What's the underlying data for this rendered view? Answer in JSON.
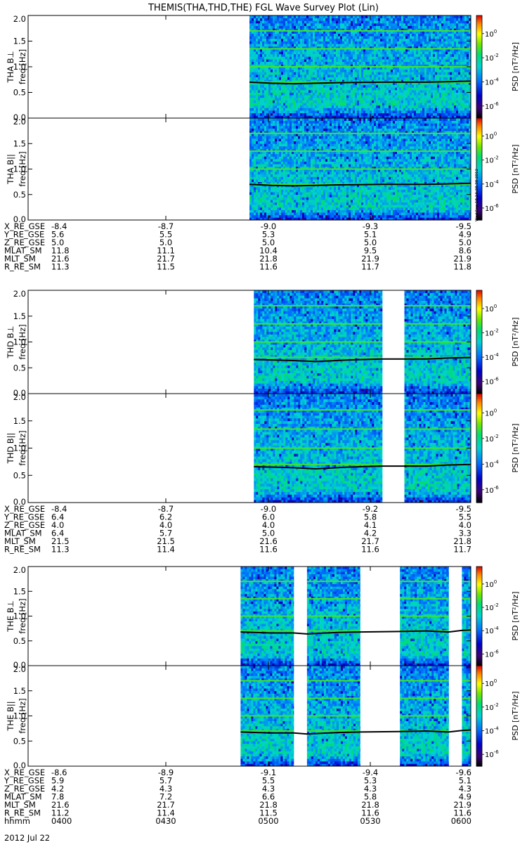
{
  "title": "THEMIS(THA,THD,THE) FGL Wave Survey Plot (Lin)",
  "date": "2012 Jul 22",
  "stamp": "Wed Sep 18 14:28:38 2012",
  "chart_data": {
    "type": "heatmap",
    "x_time_ticks": [
      "0400",
      "0430",
      "0500",
      "0530",
      "0600"
    ],
    "x_time_label": "hhmm",
    "freq_ticks": [
      "0.0",
      "0.5",
      "1.0",
      "1.5",
      "2.0"
    ],
    "freq_ylim": [
      0,
      2.0
    ],
    "colorbar": {
      "label": "PSD [nT²/Hz]",
      "ticks": [
        {
          "base": "10",
          "exp": "0",
          "log": 0
        },
        {
          "base": "10",
          "exp": "-2",
          "log": -2
        },
        {
          "base": "10",
          "exp": "-4",
          "log": -4
        },
        {
          "base": "10",
          "exp": "-6",
          "log": -6
        }
      ],
      "log_range": [
        -7,
        1.5
      ]
    },
    "probes": [
      {
        "id": "THA",
        "panels": [
          {
            "label": "THA B⊥",
            "ylabel": "freq [Hz]"
          },
          {
            "label": "THA B||",
            "ylabel": "freq [Hz]"
          }
        ],
        "data_intervals": [
          [
            0.5,
            1.0
          ]
        ],
        "gyro_line": [
          [
            0.5,
            0.7
          ],
          [
            0.55,
            0.68
          ],
          [
            0.6,
            0.67
          ],
          [
            0.65,
            0.68
          ],
          [
            0.7,
            0.69
          ],
          [
            0.8,
            0.7
          ],
          [
            0.9,
            0.7
          ],
          [
            0.95,
            0.71
          ],
          [
            1.0,
            0.72
          ]
        ],
        "ephem": {
          "rows": [
            {
              "name": "X_RE_GSE",
              "values": [
                "-8.4",
                "-8.7",
                "-9.0",
                "-9.3",
                "-9.5"
              ]
            },
            {
              "name": "Y_RE_GSE",
              "values": [
                "5.6",
                "5.5",
                "5.3",
                "5.1",
                "4.9"
              ]
            },
            {
              "name": "Z_RE_GSE",
              "values": [
                "5.0",
                "5.0",
                "5.0",
                "5.0",
                "5.0"
              ]
            },
            {
              "name": "MLAT_SM",
              "values": [
                "11.8",
                "11.1",
                "10.4",
                "9.5",
                "8.6"
              ]
            },
            {
              "name": "MLT_SM",
              "values": [
                "21.6",
                "21.7",
                "21.8",
                "21.9",
                "21.9"
              ]
            },
            {
              "name": "R_RE_SM",
              "values": [
                "11.3",
                "11.5",
                "11.6",
                "11.7",
                "11.8"
              ]
            }
          ]
        }
      },
      {
        "id": "THD",
        "panels": [
          {
            "label": "THD B⊥",
            "ylabel": "freq [Hz]"
          },
          {
            "label": "THD B||",
            "ylabel": "freq [Hz]"
          }
        ],
        "data_intervals": [
          [
            0.51,
            0.8
          ],
          [
            0.85,
            1.0
          ]
        ],
        "gyro_line": [
          [
            0.51,
            0.66
          ],
          [
            0.6,
            0.64
          ],
          [
            0.65,
            0.62
          ],
          [
            0.72,
            0.65
          ],
          [
            0.8,
            0.67
          ],
          [
            0.85,
            0.67
          ],
          [
            0.9,
            0.67
          ],
          [
            0.95,
            0.69
          ],
          [
            1.0,
            0.7
          ]
        ],
        "ephem": {
          "rows": [
            {
              "name": "X_RE_GSE",
              "values": [
                "-8.4",
                "-8.7",
                "-9.0",
                "-9.2",
                "-9.5"
              ]
            },
            {
              "name": "Y_RE_GSE",
              "values": [
                "6.4",
                "6.2",
                "6.0",
                "5.8",
                "5.5"
              ]
            },
            {
              "name": "Z_RE_GSE",
              "values": [
                "4.0",
                "4.0",
                "4.0",
                "4.1",
                "4.0"
              ]
            },
            {
              "name": "MLAT_SM",
              "values": [
                "6.4",
                "5.7",
                "5.0",
                "4.2",
                "3.3"
              ]
            },
            {
              "name": "MLT_SM",
              "values": [
                "21.5",
                "21.5",
                "21.6",
                "21.7",
                "21.8"
              ]
            },
            {
              "name": "R_RE_SM",
              "values": [
                "11.3",
                "11.4",
                "11.6",
                "11.6",
                "11.7"
              ]
            }
          ]
        }
      },
      {
        "id": "THE",
        "panels": [
          {
            "label": "THE B⊥",
            "ylabel": "freq [Hz]"
          },
          {
            "label": "THE B||",
            "ylabel": "freq [Hz]"
          }
        ],
        "data_intervals": [
          [
            0.48,
            0.6
          ],
          [
            0.63,
            0.75
          ],
          [
            0.84,
            0.95
          ],
          [
            0.98,
            1.0
          ]
        ],
        "gyro_line": [
          [
            0.48,
            0.68
          ],
          [
            0.55,
            0.66
          ],
          [
            0.6,
            0.66
          ],
          [
            0.63,
            0.64
          ],
          [
            0.7,
            0.67
          ],
          [
            0.75,
            0.68
          ],
          [
            0.84,
            0.69
          ],
          [
            0.9,
            0.7
          ],
          [
            0.95,
            0.68
          ],
          [
            0.98,
            0.71
          ],
          [
            1.0,
            0.72
          ]
        ],
        "ephem": {
          "rows": [
            {
              "name": "X_RE_GSE",
              "values": [
                "-8.6",
                "-8.9",
                "-9.1",
                "-9.4",
                "-9.6"
              ]
            },
            {
              "name": "Y_RE_GSE",
              "values": [
                "5.9",
                "5.7",
                "5.5",
                "5.3",
                "5.1"
              ]
            },
            {
              "name": "Z_RE_GSE",
              "values": [
                "4.2",
                "4.3",
                "4.3",
                "4.3",
                "4.3"
              ]
            },
            {
              "name": "MLAT_SM",
              "values": [
                "7.8",
                "7.2",
                "6.6",
                "5.8",
                "4.9"
              ]
            },
            {
              "name": "MLT_SM",
              "values": [
                "21.6",
                "21.7",
                "21.8",
                "21.8",
                "21.9"
              ]
            },
            {
              "name": "R_RE_SM",
              "values": [
                "11.2",
                "11.4",
                "11.5",
                "11.6",
                "11.6"
              ]
            }
          ]
        }
      }
    ]
  }
}
